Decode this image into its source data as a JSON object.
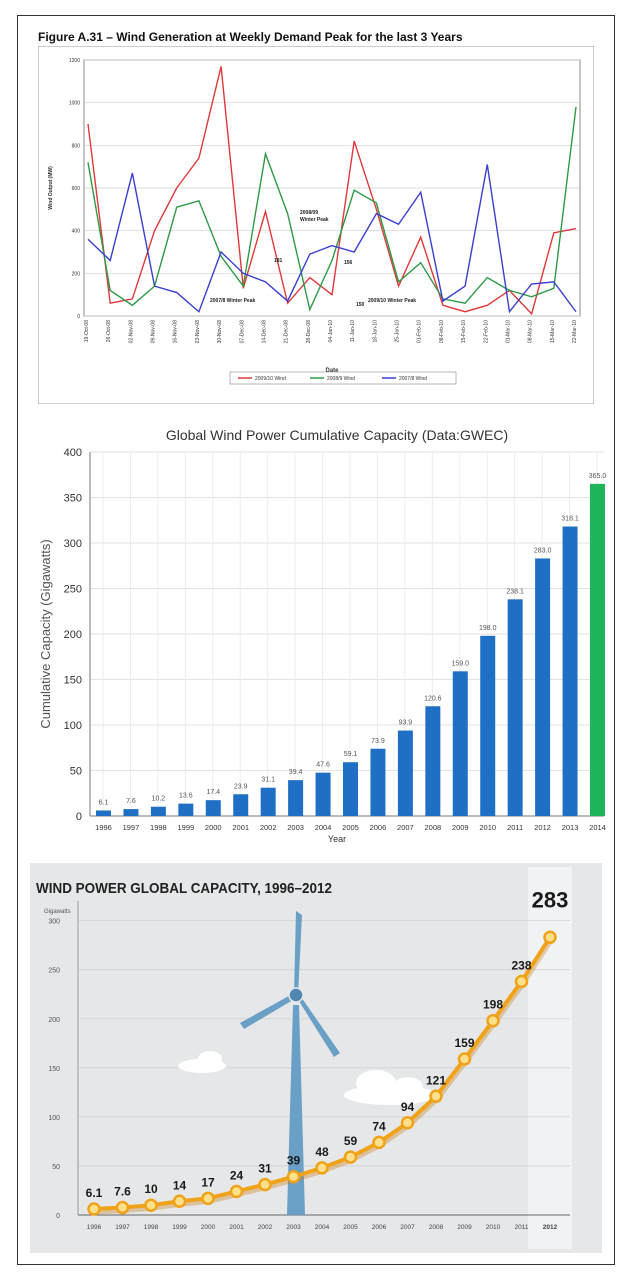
{
  "chart_data": [
    {
      "type": "line",
      "title": "Figure A.31 – Wind Generation at Weekly Demand Peak for the last 3 Years",
      "xlabel": "Date",
      "ylabel": "Wind Output (MW)",
      "ylim": [
        0,
        1200
      ],
      "yticks": [
        "0",
        "200",
        "400",
        "600",
        "800",
        "1000",
        "1200"
      ],
      "categories": [
        "19-Oct-08",
        "26-Oct-08",
        "02-Nov-08",
        "09-Nov-08",
        "16-Nov-08",
        "23-Nov-08",
        "30-Nov-08",
        "07-Dec-08",
        "14-Dec-08",
        "21-Dec-08",
        "28-Dec-08",
        "04-Jan-10",
        "11-Jan-10",
        "18-Jan-10",
        "25-Jan-10",
        "01-Feb-10",
        "08-Feb-10",
        "15-Feb-10",
        "22-Feb-10",
        "01-Mar-10",
        "08-Mar-10",
        "15-Mar-10",
        "22-Mar-10"
      ],
      "series": [
        {
          "name": "2009/10 Wind",
          "color": "#e0393b",
          "values": [
            900,
            60,
            80,
            400,
            600,
            740,
            1170,
            130,
            490,
            60,
            180,
            100,
            820,
            500,
            140,
            370,
            50,
            20,
            50,
            120,
            10,
            390,
            410
          ]
        },
        {
          "name": "2008/9 Wind",
          "color": "#2e9a46",
          "values": [
            720,
            120,
            50,
            140,
            510,
            540,
            280,
            140,
            760,
            480,
            30,
            260,
            590,
            530,
            160,
            250,
            80,
            60,
            180,
            120,
            90,
            130,
            980
          ]
        },
        {
          "name": "2007/8 Wind",
          "color": "#3a3fd0",
          "values": [
            360,
            260,
            670,
            140,
            110,
            20,
            300,
            200,
            160,
            70,
            290,
            330,
            300,
            480,
            430,
            580,
            70,
            140,
            710,
            20,
            150,
            160,
            20
          ]
        }
      ],
      "annotations": [
        "2008/09 Winter Peak",
        "2007/8 Winter Peak",
        "2009/10 Winter Peak",
        "181",
        "156",
        "150"
      ],
      "legend": "bottom"
    },
    {
      "type": "bar",
      "title": "Global Wind Power Cumulative Capacity (Data:GWEC)",
      "xlabel": "Year",
      "ylabel": "Cumulative Capacity (Gigawatts)",
      "ylim": [
        0,
        400
      ],
      "yticks": [
        "0",
        "50",
        "100",
        "150",
        "200",
        "250",
        "300",
        "350",
        "400"
      ],
      "categories": [
        "1996",
        "1997",
        "1998",
        "1999",
        "2000",
        "2001",
        "2002",
        "2003",
        "2004",
        "2005",
        "2006",
        "2007",
        "2008",
        "2009",
        "2010",
        "2011",
        "2012",
        "2013",
        "2014"
      ],
      "values": [
        6.1,
        7.6,
        10.2,
        13.6,
        17.4,
        23.9,
        31.1,
        39.4,
        47.6,
        59.1,
        73.9,
        93.9,
        120.6,
        159.0,
        198.0,
        238.1,
        283.0,
        318.1,
        365.0
      ],
      "labels": [
        "6.1",
        "7.6",
        "10.2",
        "13.6",
        "17.4",
        "23.9",
        "31.1",
        "39.4",
        "47.6",
        "59.1",
        "73.9",
        "93.9",
        "120.6",
        "159.0",
        "198.0",
        "238.1",
        "283.0",
        "318.1",
        "365.0"
      ],
      "colors": {
        "bar": "#1f6fc5",
        "highlight": "#1fb35a"
      }
    },
    {
      "type": "line",
      "title": "WIND POWER GLOBAL CAPACITY, 1996–2012",
      "ylabel": "Gigawatts",
      "ylim": [
        0,
        320
      ],
      "yticks": [
        "0",
        "50",
        "100",
        "150",
        "200",
        "250",
        "300"
      ],
      "categories": [
        "1996",
        "1997",
        "1998",
        "1999",
        "2000",
        "2001",
        "2002",
        "2003",
        "2004",
        "2005",
        "2006",
        "2007",
        "2008",
        "2009",
        "2010",
        "2011",
        "2012"
      ],
      "values": [
        6.1,
        7.6,
        10,
        14,
        17,
        24,
        31,
        39,
        48,
        59,
        74,
        94,
        121,
        159,
        198,
        238,
        283
      ],
      "labels": [
        "6.1",
        "7.6",
        "10",
        "14",
        "17",
        "24",
        "31",
        "39",
        "48",
        "59",
        "74",
        "94",
        "121",
        "159",
        "198",
        "238",
        "283"
      ],
      "colors": {
        "line": "#f0a318",
        "background": "#e6e7e8",
        "turbine": "#6a9fc6"
      }
    }
  ]
}
